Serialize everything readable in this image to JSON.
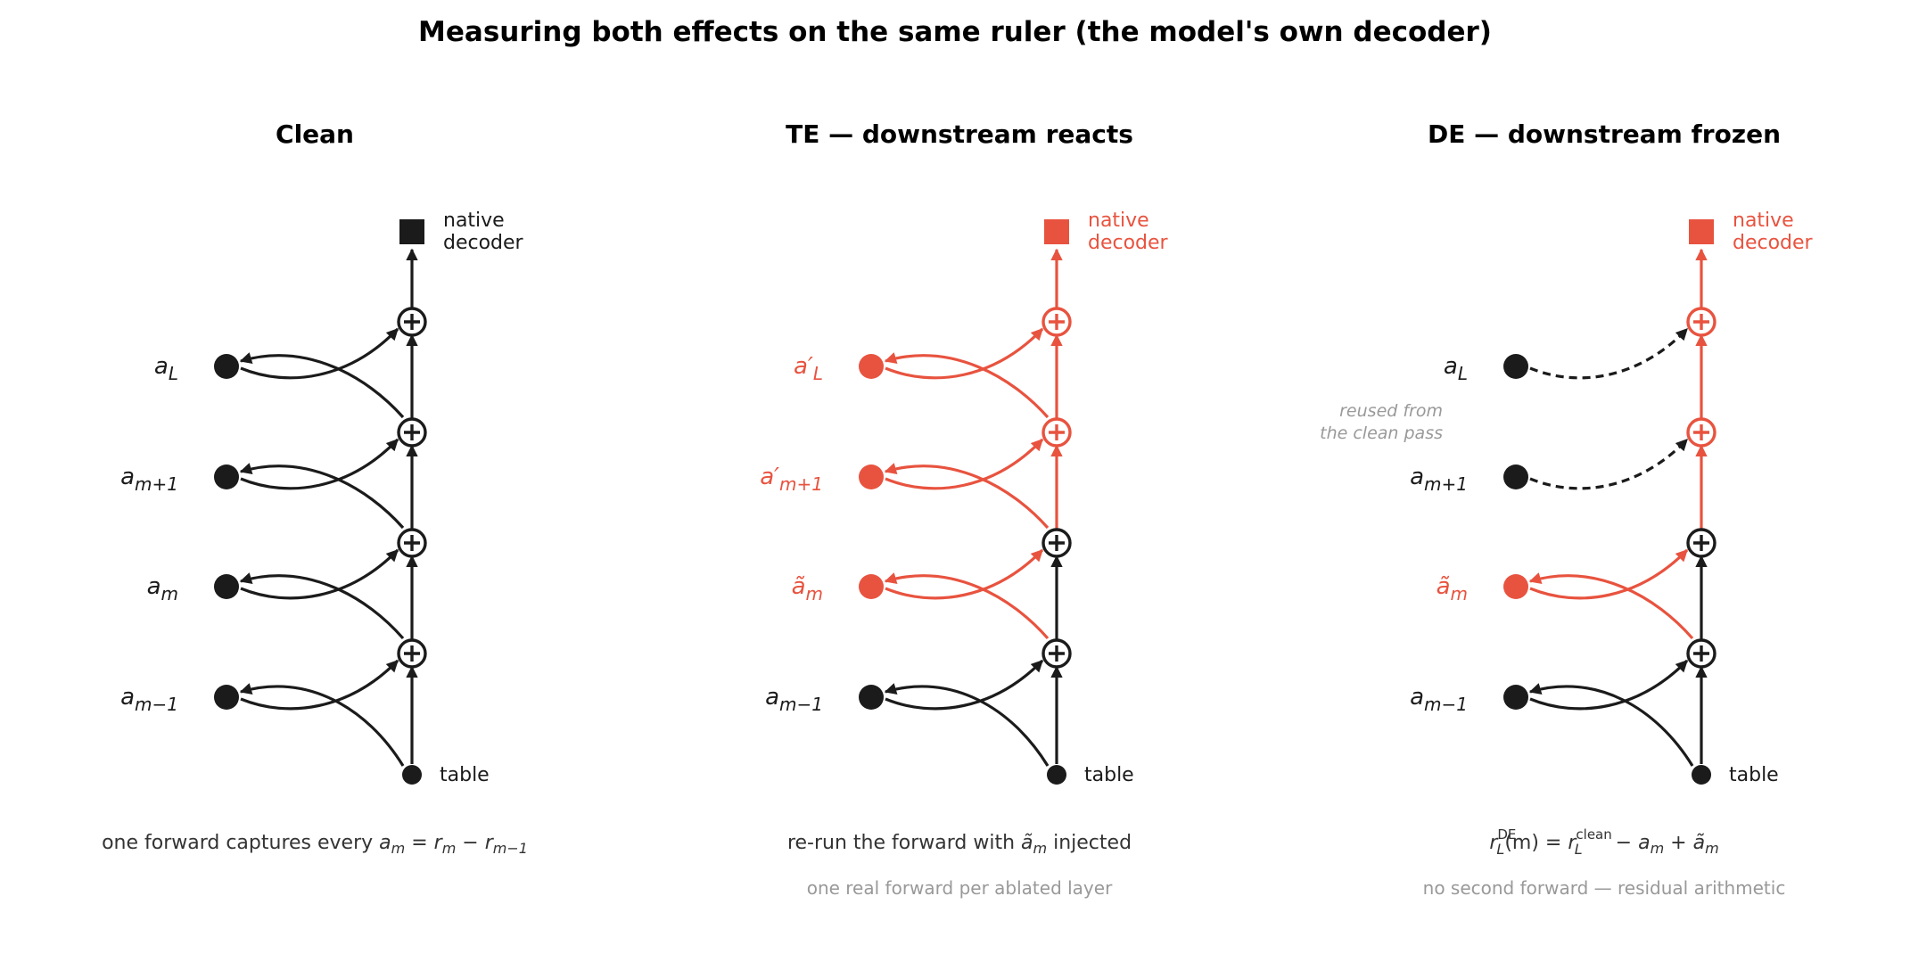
{
  "title": "Measuring both effects on the same ruler (the model's own decoder)",
  "colors": {
    "black": "#1b1b1b",
    "red": "#e8533f",
    "gray": "#999999",
    "caption": "#333333"
  },
  "labels": {
    "decoder_line1": "native",
    "decoder_line2": "decoder",
    "table": "table"
  },
  "panels": [
    {
      "id": "clean",
      "title": "Clean",
      "activations": [
        {
          "base": "a",
          "sub": "L",
          "prime": "",
          "tilde": false,
          "color": "black"
        },
        {
          "base": "a",
          "sub": "m+1",
          "prime": "",
          "tilde": false,
          "color": "black"
        },
        {
          "base": "a",
          "sub": "m",
          "prime": "",
          "tilde": false,
          "color": "black"
        },
        {
          "base": "a",
          "sub": "m−1",
          "prime": "",
          "tilde": false,
          "color": "black"
        }
      ],
      "read_colors": [
        "black",
        "black",
        "black",
        "black"
      ],
      "write_colors": [
        "black",
        "black",
        "black",
        "black"
      ],
      "write_dashed": [
        false,
        false,
        false,
        false
      ],
      "plus_colors": [
        "black",
        "black",
        "black",
        "black"
      ],
      "trunk_colors": [
        "black",
        "black",
        "black",
        "black",
        "black"
      ],
      "decoder_color": "black",
      "side_note": [],
      "caption": {
        "pre": "one forward captures every ",
        "a": "a",
        "a_sub": "m",
        "eq": " = ",
        "r1": "r",
        "r1_sub": "m",
        "minus": " − ",
        "r2": "r",
        "r2_sub": "m−1"
      },
      "note": ""
    },
    {
      "id": "te",
      "title": "TE — downstream reacts",
      "activations": [
        {
          "base": "a",
          "sub": "L",
          "prime": "′",
          "tilde": false,
          "color": "red"
        },
        {
          "base": "a",
          "sub": "m+1",
          "prime": "′",
          "tilde": false,
          "color": "red"
        },
        {
          "base": "a",
          "sub": "m",
          "prime": "",
          "tilde": true,
          "color": "red"
        },
        {
          "base": "a",
          "sub": "m−1",
          "prime": "",
          "tilde": false,
          "color": "black"
        }
      ],
      "read_colors": [
        "red",
        "red",
        "red",
        "black"
      ],
      "write_colors": [
        "red",
        "red",
        "red",
        "black"
      ],
      "write_dashed": [
        false,
        false,
        false,
        false
      ],
      "plus_colors": [
        "red",
        "red",
        "black",
        "black"
      ],
      "trunk_colors": [
        "red",
        "red",
        "red",
        "black",
        "black"
      ],
      "decoder_color": "red",
      "side_note": [],
      "caption": {
        "pre": "re-run the forward with ",
        "a": "a",
        "a_sub": "m",
        "post": " injected"
      },
      "note": "one real forward per ablated layer"
    },
    {
      "id": "de",
      "title": "DE — downstream frozen",
      "activations": [
        {
          "base": "a",
          "sub": "L",
          "prime": "",
          "tilde": false,
          "color": "black"
        },
        {
          "base": "a",
          "sub": "m+1",
          "prime": "",
          "tilde": false,
          "color": "black"
        },
        {
          "base": "a",
          "sub": "m",
          "prime": "",
          "tilde": true,
          "color": "red"
        },
        {
          "base": "a",
          "sub": "m−1",
          "prime": "",
          "tilde": false,
          "color": "black"
        }
      ],
      "read_colors": [
        null,
        null,
        "red",
        "black"
      ],
      "write_colors": [
        "black",
        "black",
        "red",
        "black"
      ],
      "write_dashed": [
        true,
        true,
        false,
        false
      ],
      "plus_colors": [
        "red",
        "red",
        "black",
        "black"
      ],
      "trunk_colors": [
        "red",
        "red",
        "red",
        "black",
        "black"
      ],
      "decoder_color": "red",
      "side_note": [
        "reused from",
        "the clean pass"
      ],
      "caption": {
        "r": "r",
        "r_sub": "L",
        "r_sup": "DE",
        "arg": "(m) = ",
        "r2": "r",
        "r2_sub": "L",
        "r2_sup": "clean",
        "minus": " − ",
        "a": "a",
        "a_sub": "m",
        "plus": " + ",
        "a2": "a",
        "a2_sub": "m"
      },
      "note": "no second forward — residual arithmetic"
    }
  ]
}
